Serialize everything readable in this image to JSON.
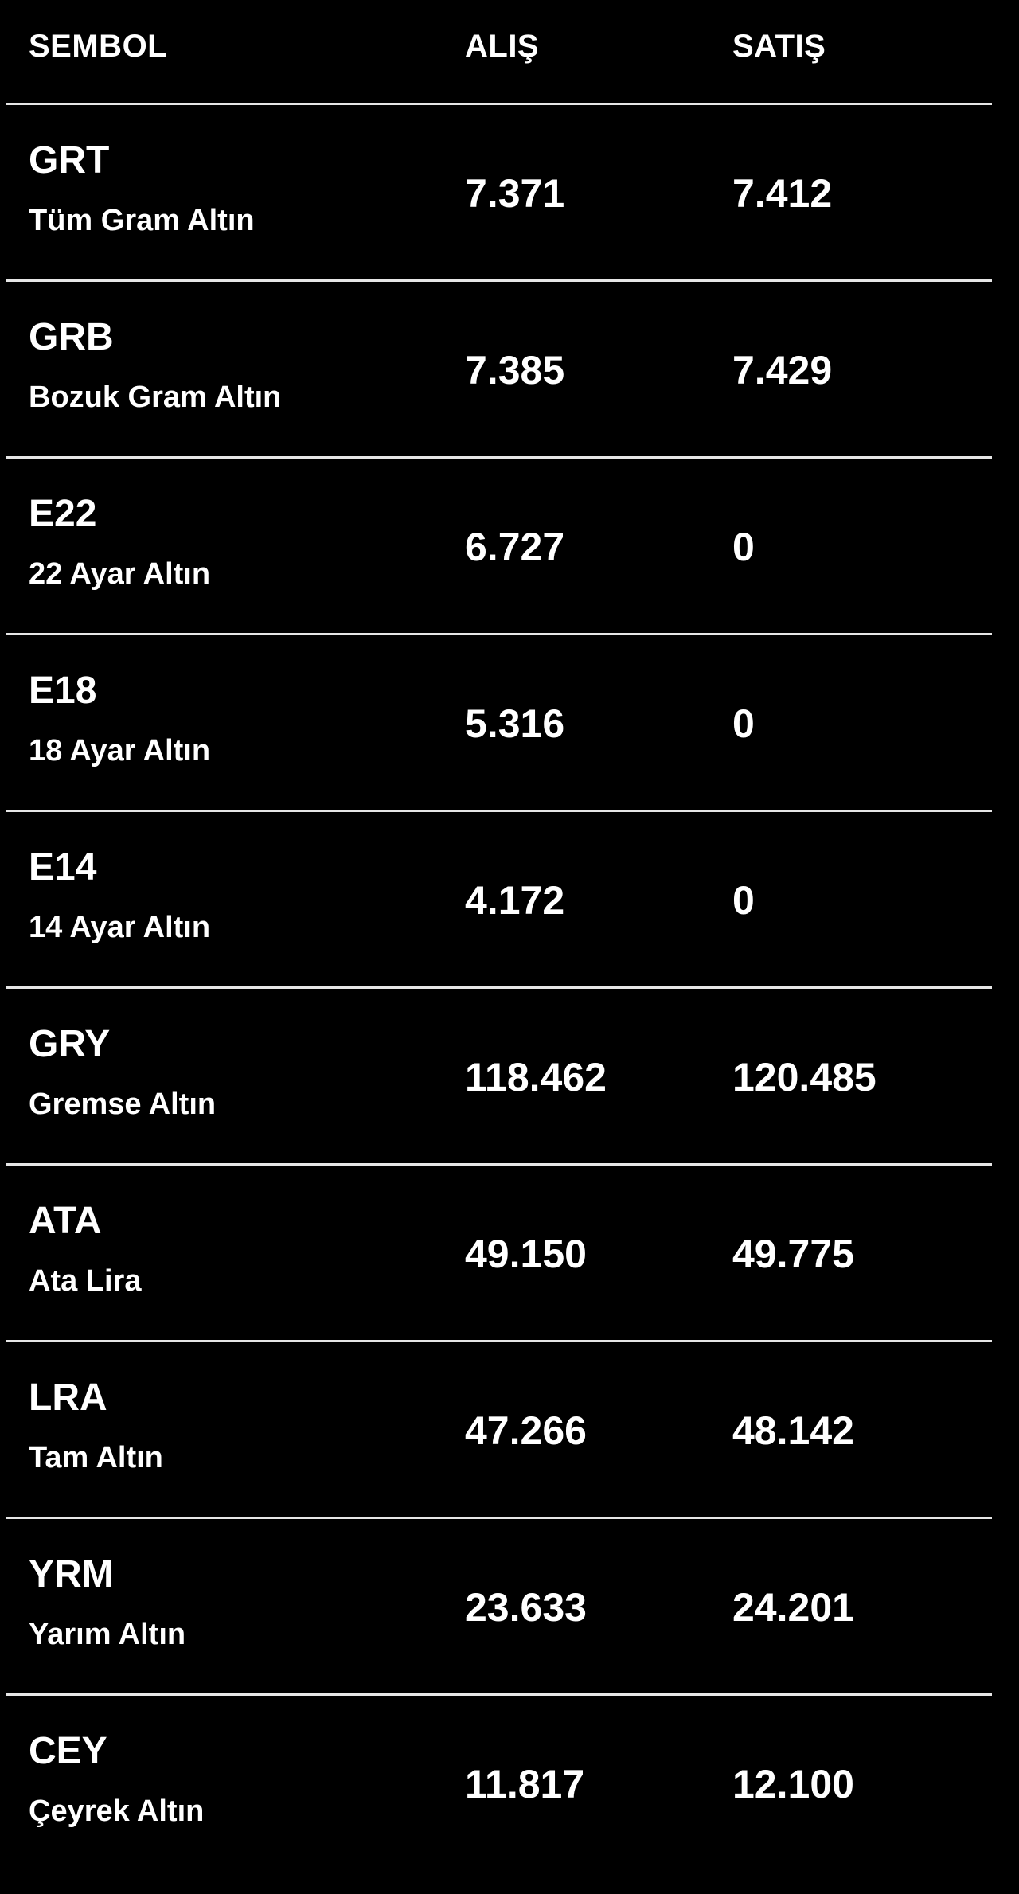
{
  "header": {
    "symbol": "SEMBOL",
    "buy": "ALIŞ",
    "sell": "SATIŞ"
  },
  "rows": [
    {
      "symbol": "GRT",
      "name": "Tüm Gram Altın",
      "buy": "7.371",
      "sell": "7.412"
    },
    {
      "symbol": "GRB",
      "name": "Bozuk Gram Altın",
      "buy": "7.385",
      "sell": "7.429"
    },
    {
      "symbol": "E22",
      "name": "22 Ayar Altın",
      "buy": "6.727",
      "sell": "0"
    },
    {
      "symbol": "E18",
      "name": "18 Ayar Altın",
      "buy": "5.316",
      "sell": "0"
    },
    {
      "symbol": "E14",
      "name": "14 Ayar Altın",
      "buy": "4.172",
      "sell": "0"
    },
    {
      "symbol": "GRY",
      "name": "Gremse Altın",
      "buy": "118.462",
      "sell": "120.485"
    },
    {
      "symbol": "ATA",
      "name": "Ata Lira",
      "buy": "49.150",
      "sell": "49.775"
    },
    {
      "symbol": "LRA",
      "name": "Tam Altın",
      "buy": "47.266",
      "sell": "48.142"
    },
    {
      "symbol": "YRM",
      "name": "Yarım Altın",
      "buy": "23.633",
      "sell": "24.201"
    },
    {
      "symbol": "CEY",
      "name": "Çeyrek Altın",
      "buy": "11.817",
      "sell": "12.100"
    }
  ]
}
